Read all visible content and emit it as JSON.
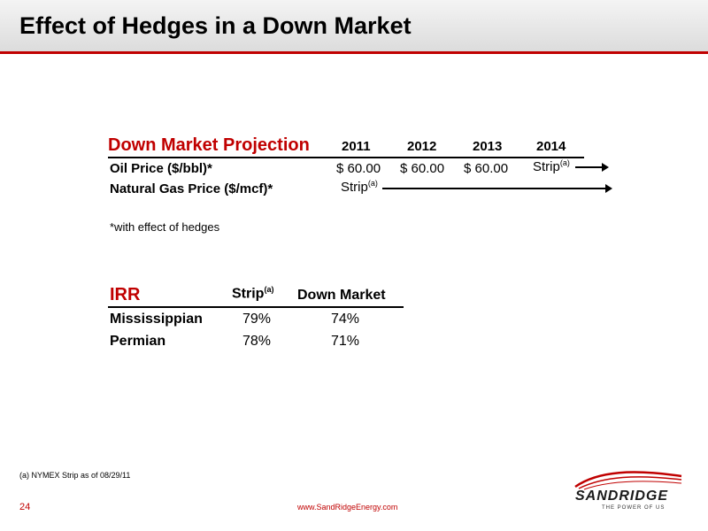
{
  "slide": {
    "title": "Effect of Hedges in a Down Market",
    "page_number": "24",
    "url": "www.SandRidgeEnergy.com",
    "footnote": "(a)   NYMEX Strip as of 08/29/11"
  },
  "projection": {
    "heading": "Down Market Projection",
    "years": [
      "2011",
      "2012",
      "2013",
      "2014"
    ],
    "oil": {
      "label": "Oil Price ($/bbl)*",
      "values": [
        "$ 60.00",
        "$ 60.00",
        "$ 60.00"
      ],
      "strip": "Strip",
      "strip_sup": "(a)"
    },
    "gas": {
      "label": "Natural Gas Price ($/mcf)*",
      "strip": "Strip",
      "strip_sup": "(a)"
    },
    "note": "*with effect of hedges"
  },
  "irr": {
    "heading": "IRR",
    "col_strip": "Strip",
    "col_strip_sup": "(a)",
    "col_down": "Down Market",
    "rows": [
      {
        "label": "Mississippian",
        "strip": "79%",
        "down": "74%"
      },
      {
        "label": "Permian",
        "strip": "78%",
        "down": "71%"
      }
    ]
  },
  "logo": {
    "name": "SANDRIDGE",
    "tagline": "THE POWER OF US"
  },
  "colors": {
    "accent": "#c00000"
  }
}
